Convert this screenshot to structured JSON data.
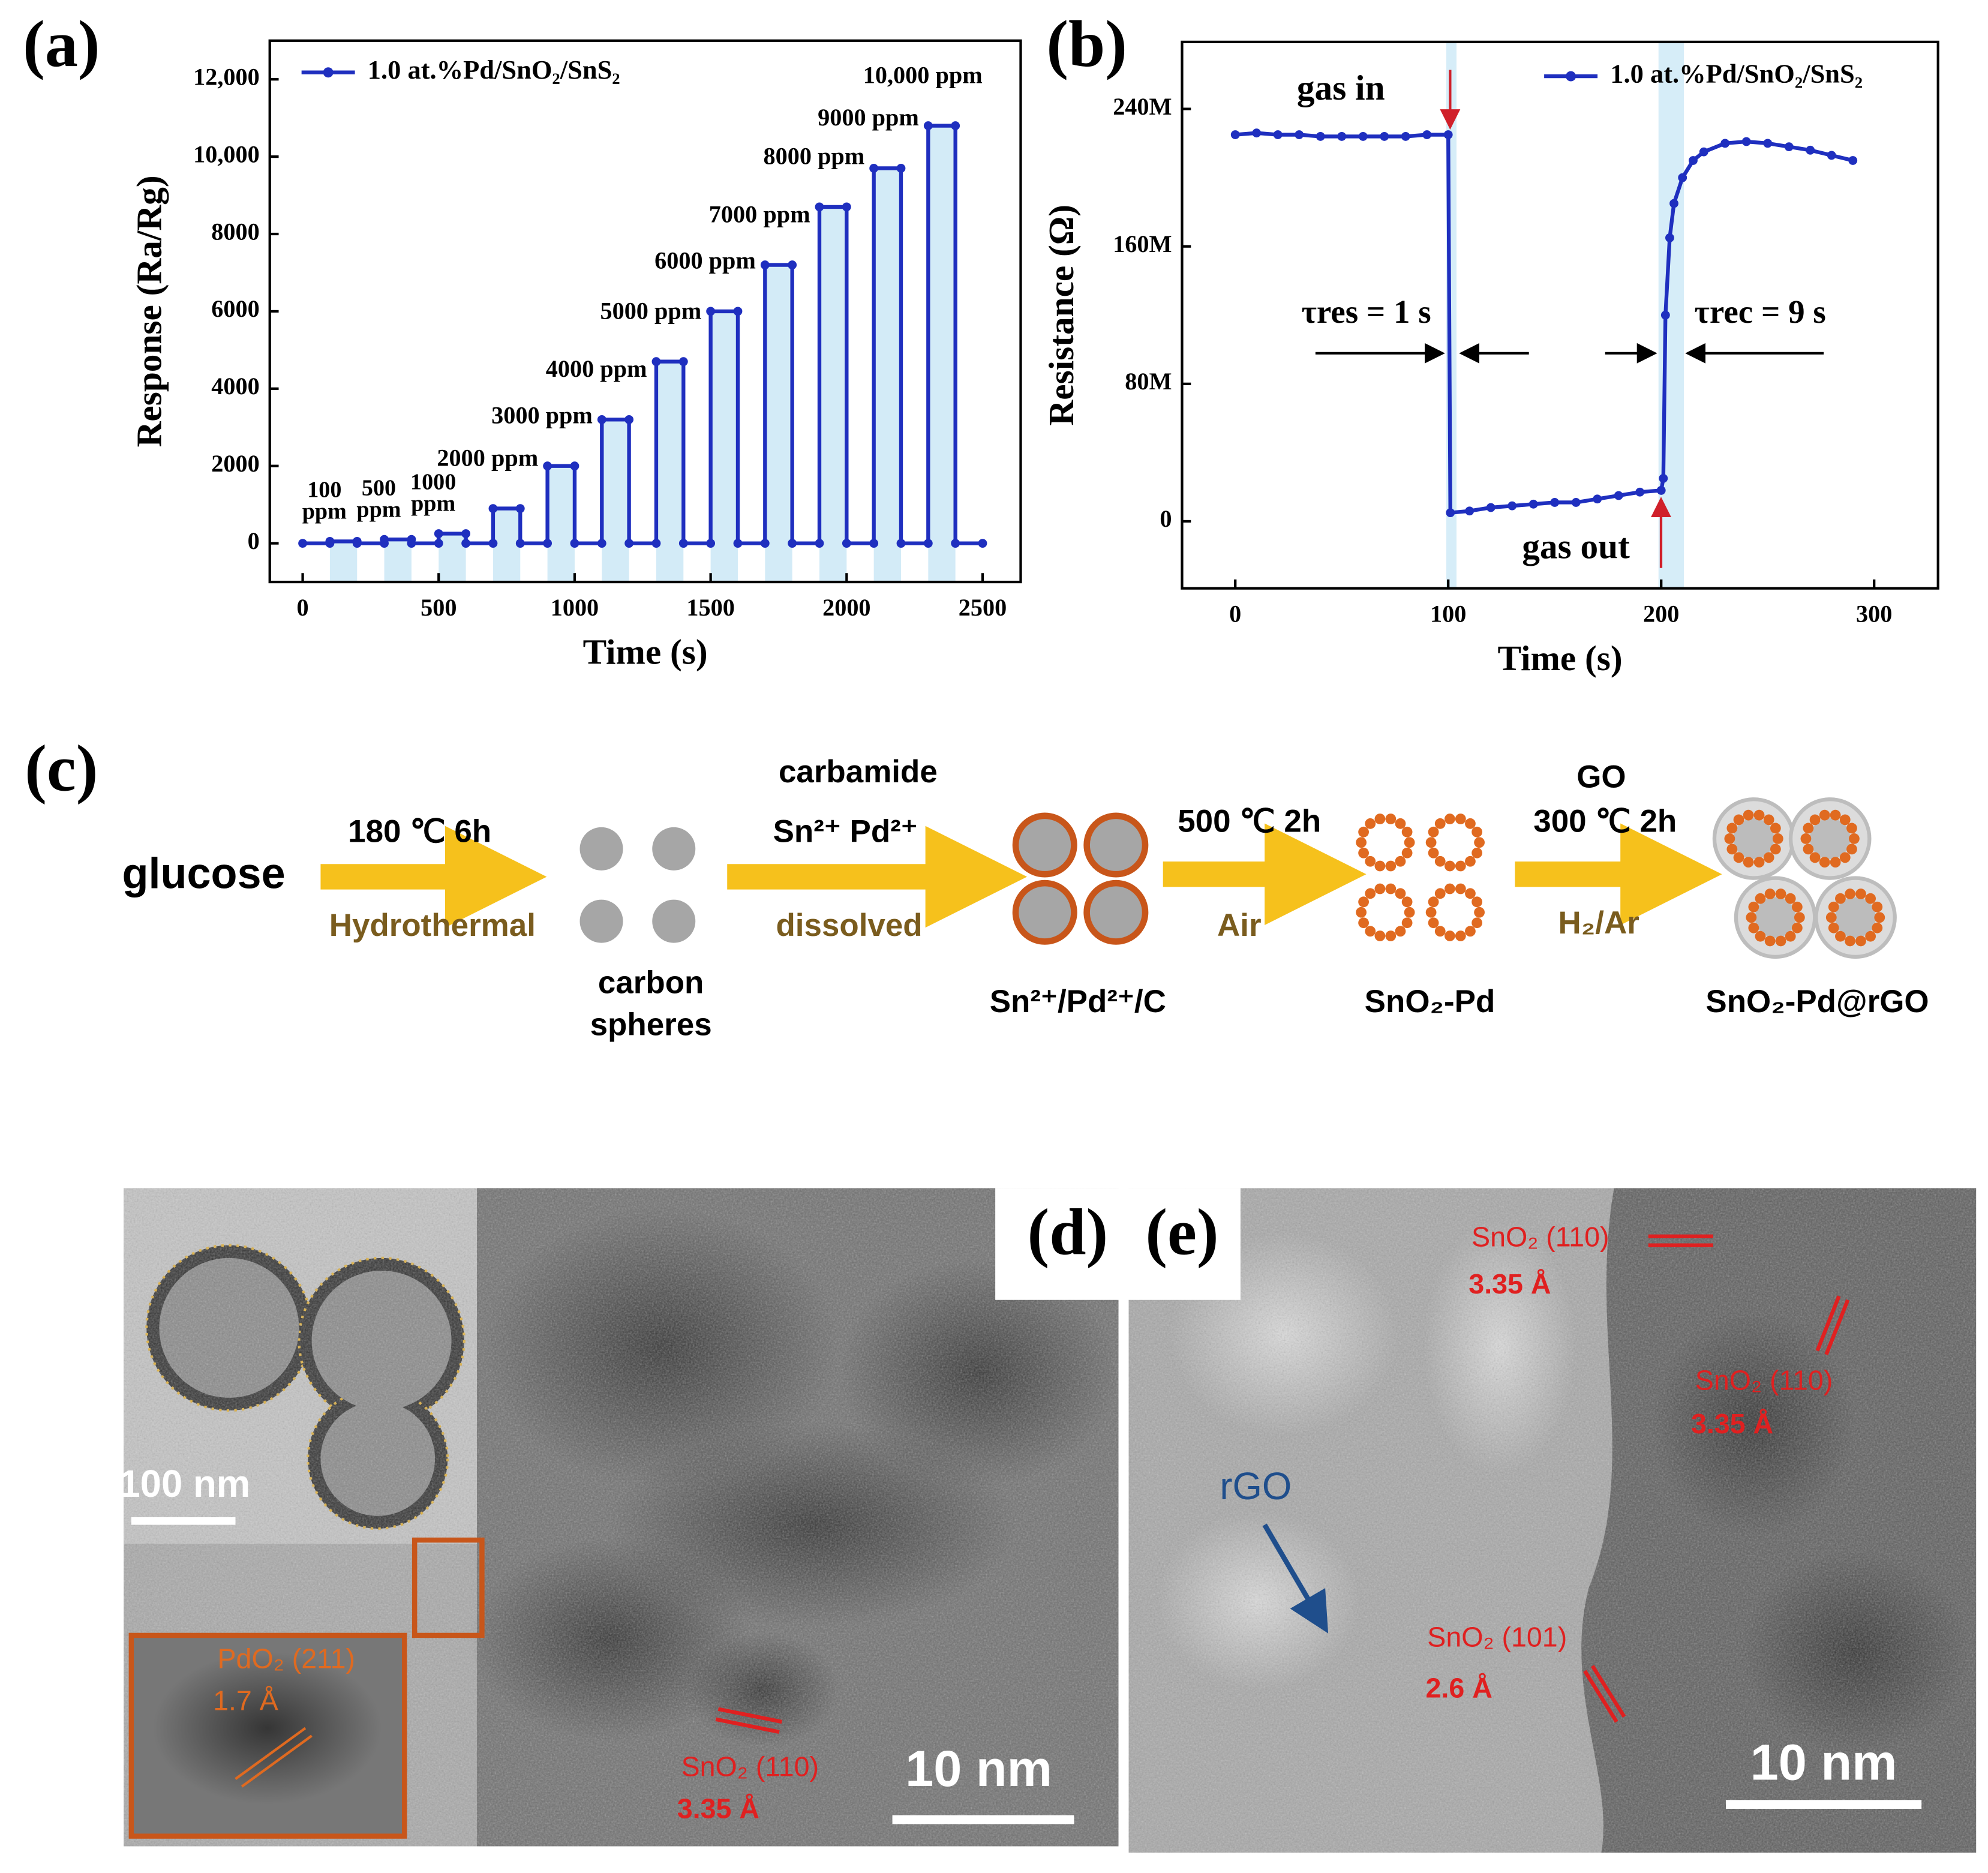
{
  "chart_data": [
    {
      "type": "line",
      "panel_label": "(a)",
      "xlabel": "Time (s)",
      "ylabel": "Response (Ra/Rg)",
      "xlim": [
        -121,
        2640
      ],
      "xticks": [
        0,
        500,
        1000,
        1500,
        2000,
        2500
      ],
      "ylim": [
        -1000,
        13000
      ],
      "yticks": [
        0,
        2000,
        4000,
        6000,
        8000,
        {
          "value": 10000,
          "label": "10,000"
        },
        {
          "value": 12000,
          "label": "12,000"
        }
      ],
      "x": [
        0,
        100,
        100,
        200,
        200,
        300,
        300,
        400,
        400,
        500,
        500,
        600,
        600,
        700,
        700,
        800,
        800,
        900,
        900,
        1000,
        1000,
        1100,
        1100,
        1200,
        1200,
        1300,
        1300,
        1400,
        1400,
        1500,
        1500,
        1600,
        1600,
        1700,
        1700,
        1800,
        1800,
        1900,
        1900,
        2000,
        2000,
        2100,
        2100,
        2200,
        2200,
        2300,
        2300,
        2400,
        2400,
        2500
      ],
      "series": [
        {
          "name": "1.0 at.%Pd/SnO₂/SnS₂",
          "color": "#1f2fbf",
          "values": [
            0,
            0,
            50,
            50,
            0,
            0,
            100,
            100,
            0,
            0,
            250,
            250,
            0,
            0,
            900,
            900,
            0,
            0,
            2000,
            2000,
            0,
            0,
            3200,
            3200,
            0,
            0,
            4700,
            4700,
            0,
            0,
            6000,
            6000,
            0,
            0,
            7200,
            7200,
            0,
            0,
            8700,
            8700,
            0,
            0,
            9700,
            9700,
            0,
            0,
            10800,
            10800,
            0,
            0
          ]
        }
      ],
      "pulse_labels": [
        [
          "100",
          "ppm"
        ],
        [
          "500",
          "ppm"
        ],
        [
          "1000",
          "ppm"
        ],
        "2000 ppm",
        "3000 ppm",
        "4000 ppm",
        "5000 ppm",
        "6000 ppm",
        "7000 ppm",
        "8000 ppm",
        "9000 ppm",
        "10,000 ppm"
      ]
    },
    {
      "type": "line",
      "panel_label": "(b)",
      "xlabel": "Time (s)",
      "ylabel": "Resistance (Ω)",
      "xlim": [
        -25,
        330
      ],
      "xticks": [
        0,
        100,
        200,
        300
      ],
      "ylim": [
        -39000000,
        279000000
      ],
      "yticks": [
        0,
        {
          "value": 80000000,
          "label": "80M"
        },
        {
          "value": 160000000,
          "label": "160M"
        },
        {
          "value": 240000000,
          "label": "240M"
        }
      ],
      "x": [
        0,
        10,
        20,
        30,
        40,
        50,
        60,
        70,
        80,
        90,
        100,
        101,
        110,
        120,
        130,
        140,
        150,
        160,
        170,
        180,
        190,
        200,
        201,
        202,
        204,
        206,
        210,
        215,
        220,
        230,
        240,
        250,
        260,
        270,
        280,
        290
      ],
      "series": [
        {
          "name": "1.0 at.%Pd/SnO₂/SnS₂",
          "color": "#1f2fbf",
          "values": [
            225000000,
            226000000,
            225000000,
            225000000,
            224000000,
            224000000,
            224000000,
            224000000,
            224000000,
            225000000,
            225000000,
            5000000,
            6000000,
            8000000,
            9000000,
            10000000,
            11000000,
            11000000,
            13000000,
            15000000,
            17000000,
            18000000,
            25000000,
            120000000,
            165000000,
            185000000,
            200000000,
            210000000,
            215000000,
            220000000,
            221000000,
            220000000,
            218000000,
            216000000,
            213000000,
            210000000
          ]
        }
      ],
      "annotations": [
        "gas in",
        "gas out",
        "τres = 1 s",
        "τrec = 9 s"
      ]
    }
  ],
  "scheme": {
    "panel_label": "(c)",
    "start": "glucose",
    "steps": [
      {
        "above": [
          "180 ℃ 6h"
        ],
        "below": "Hydrothermal"
      },
      {
        "above": [
          "carbamide",
          "Sn²⁺ Pd²⁺"
        ],
        "below": "dissolved"
      },
      {
        "above": [
          "500 ℃ 2h"
        ],
        "below": "Air"
      },
      {
        "above": [
          "GO",
          "300 ℃ 2h"
        ],
        "below": "H₂/Ar"
      }
    ],
    "products": [
      [
        "carbon",
        "spheres"
      ],
      [
        "Sn²⁺/Pd²⁺/C"
      ],
      [
        "SnO₂-Pd"
      ],
      [
        "SnO₂-Pd@rGO"
      ]
    ]
  },
  "micrographs": [
    {
      "panel_label": "(d)",
      "inset_scale": "100 nm",
      "zoom_labels": [
        "PdO₂ (211)",
        "1.7 Å"
      ],
      "labels": [
        "SnO₂ (110)",
        "3.35 Å"
      ],
      "scale": "10 nm"
    },
    {
      "panel_label": "(e)",
      "labels": [
        "SnO₂ (110)",
        "3.35 Å",
        "SnO₂ (110)",
        "3.35 Å",
        "rGO",
        "SnO₂ (101)",
        "2.6 Å"
      ],
      "scale": "10 nm"
    }
  ]
}
